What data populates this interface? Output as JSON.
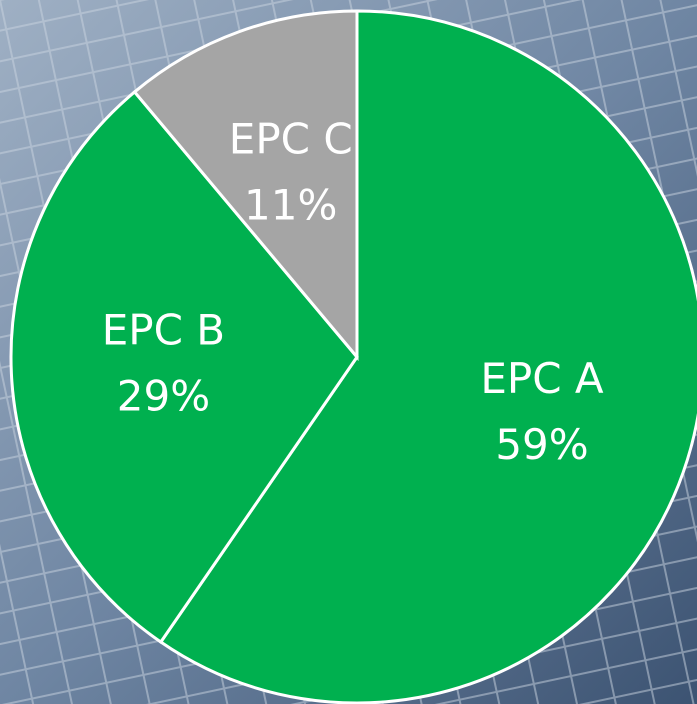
{
  "chart_data": {
    "type": "pie",
    "categories": [
      "EPC A",
      "EPC B",
      "EPC C"
    ],
    "values": [
      59,
      29,
      11
    ],
    "value_labels": [
      "59%",
      "29%",
      "11%"
    ],
    "colors": [
      "#00b04f",
      "#00b04f",
      "#a5a5a5"
    ]
  }
}
